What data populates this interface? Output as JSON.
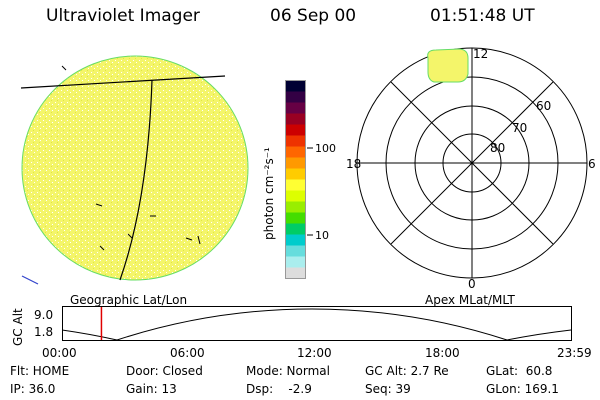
{
  "header": {
    "title": "Ultraviolet Imager",
    "date": "06 Sep 00",
    "time": "01:51:48 UT"
  },
  "colorbar": {
    "label": "photon cm⁻²s⁻¹",
    "ticks": [
      "100",
      "10"
    ],
    "colors": [
      "#000033",
      "#330044",
      "#660044",
      "#990022",
      "#cc0000",
      "#ee3300",
      "#ff6600",
      "#ff9900",
      "#ffcc00",
      "#ffff33",
      "#ddff00",
      "#99ee00",
      "#44dd00",
      "#00cc66",
      "#00cccc",
      "#66dddd",
      "#aaeeee",
      "#dddddd"
    ]
  },
  "polar": {
    "labels": {
      "top": "12",
      "left": "18",
      "right": "6",
      "bottom": "0"
    },
    "rings": [
      "60",
      "70",
      "80"
    ]
  },
  "captions": {
    "left": "Geographic Lat/Lon",
    "right": "Apex MLat/MLT"
  },
  "altitude_plot": {
    "ylabel": "GC Alt",
    "yticks": [
      "9.0",
      "1.8"
    ],
    "xticks": [
      "00:00",
      "06:00",
      "12:00",
      "18:00",
      "23:59"
    ],
    "current_marker_hours": 1.86
  },
  "status": {
    "flt": "Flt: HOME",
    "ip": "IP: 36.0",
    "door": "Door: Closed",
    "gain": "Gain: 13",
    "mode": "Mode: Normal",
    "dsp": "Dsp:    -2.9",
    "gcalt": "GC Alt: 2.7 Re",
    "seq": "Seq: 39",
    "glat": "GLat:  60.8",
    "glon": "GLon: 169.1"
  }
}
